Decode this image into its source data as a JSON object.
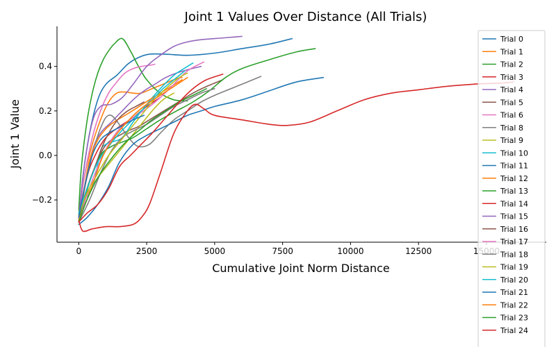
{
  "chart_data": {
    "type": "line",
    "title": "Joint 1 Values Over Distance (All Trials)",
    "xlabel": "Cumulative Joint Norm Distance",
    "ylabel": "Joint 1 Value",
    "xlim": [
      -800,
      17200
    ],
    "ylim": [
      -0.39,
      0.58
    ],
    "xticks": [
      0,
      2500,
      5000,
      7500,
      10000,
      12500,
      15000
    ],
    "yticks": [
      -0.2,
      0.0,
      0.2,
      0.4
    ],
    "ytick_labels": [
      "−0.2",
      "0.0",
      "0.2",
      "0.4"
    ],
    "grid": false,
    "legend_position": "right",
    "series": [
      {
        "name": "Trial 0",
        "color": "#1f77b4",
        "x": [
          0,
          150,
          400,
          700,
          1000,
          1400,
          1800,
          2200,
          2600,
          3200,
          4000,
          5000,
          6000,
          7000,
          7850
        ],
        "y": [
          -0.3,
          -0.1,
          0.1,
          0.25,
          0.32,
          0.36,
          0.41,
          0.44,
          0.455,
          0.455,
          0.45,
          0.46,
          0.48,
          0.5,
          0.525
        ]
      },
      {
        "name": "Trial 1",
        "color": "#ff7f0e",
        "x": [
          0,
          200,
          500,
          800,
          1100,
          1400,
          1700,
          2000,
          2300,
          2700,
          3100,
          3600,
          3800
        ],
        "y": [
          -0.28,
          -0.1,
          0.05,
          0.16,
          0.24,
          0.28,
          0.285,
          0.28,
          0.28,
          0.3,
          0.32,
          0.345,
          0.35
        ]
      },
      {
        "name": "Trial 2",
        "color": "#2ca02c",
        "x": [
          0,
          100,
          300,
          500,
          700,
          900,
          1100,
          1300,
          1600,
          1900,
          2200,
          2500,
          3000,
          3500,
          4000
        ],
        "y": [
          -0.25,
          -0.05,
          0.15,
          0.28,
          0.37,
          0.43,
          0.47,
          0.5,
          0.525,
          0.47,
          0.4,
          0.34,
          0.28,
          0.25,
          0.245
        ]
      },
      {
        "name": "Trial 3",
        "color": "#d62728",
        "x": [
          0,
          300,
          600,
          1000,
          1500,
          2000,
          2500,
          3000
        ],
        "y": [
          -0.3,
          -0.1,
          0.0,
          0.08,
          0.13,
          0.17,
          0.22,
          0.26
        ]
      },
      {
        "name": "Trial 4",
        "color": "#9467bd",
        "x": [
          0,
          200,
          500,
          800,
          1200,
          1600,
          2000,
          2400,
          2800,
          3200,
          3600,
          4000,
          4500
        ],
        "y": [
          -0.29,
          -0.15,
          0.02,
          0.1,
          0.15,
          0.2,
          0.25,
          0.29,
          0.32,
          0.35,
          0.37,
          0.385,
          0.4
        ]
      },
      {
        "name": "Trial 5",
        "color": "#8c564b",
        "x": [
          0,
          300,
          600,
          900,
          1200,
          1500,
          1800,
          2200,
          2600,
          3000,
          3400,
          3800,
          4200,
          4700,
          5300
        ],
        "y": [
          -0.28,
          -0.15,
          -0.05,
          0.03,
          0.07,
          0.09,
          0.11,
          0.13,
          0.16,
          0.19,
          0.22,
          0.25,
          0.28,
          0.31,
          0.34
        ]
      },
      {
        "name": "Trial 6",
        "color": "#e377c2",
        "x": [
          0,
          200,
          500,
          800,
          1100,
          1400,
          1700,
          2000,
          2300,
          2600,
          2800
        ],
        "y": [
          -0.27,
          -0.1,
          0.08,
          0.2,
          0.28,
          0.33,
          0.37,
          0.39,
          0.4,
          0.405,
          0.41
        ]
      },
      {
        "name": "Trial 8",
        "color": "#7f7f7f",
        "x": [
          0,
          300,
          600,
          900,
          1100,
          1300,
          1600,
          1900,
          2200,
          2600,
          3000,
          3500,
          4000,
          4500,
          5000,
          5600,
          6200,
          6700
        ],
        "y": [
          -0.27,
          -0.1,
          0.05,
          0.15,
          0.18,
          0.17,
          0.12,
          0.07,
          0.04,
          0.05,
          0.1,
          0.16,
          0.2,
          0.24,
          0.27,
          0.3,
          0.33,
          0.355
        ]
      },
      {
        "name": "Trial 9",
        "color": "#bcbd22",
        "x": [
          0,
          300,
          700,
          1100,
          1500,
          1900,
          2300,
          2700,
          3100,
          3500
        ],
        "y": [
          -0.25,
          -0.18,
          -0.1,
          -0.04,
          0.02,
          0.08,
          0.14,
          0.2,
          0.25,
          0.28
        ]
      },
      {
        "name": "Trial 10",
        "color": "#17becf",
        "x": [
          0,
          200,
          400,
          600,
          800,
          1000,
          1200,
          1600,
          2000,
          2500,
          3000,
          3500,
          4000,
          4200
        ],
        "y": [
          -0.26,
          -0.2,
          -0.17,
          -0.1,
          0.02,
          0.05,
          0.06,
          0.08,
          0.15,
          0.23,
          0.3,
          0.36,
          0.4,
          0.415
        ]
      },
      {
        "name": "Trial 11",
        "color": "#1f77b4",
        "x": [
          0,
          300,
          700,
          1100,
          1500,
          2000,
          2500,
          3000,
          3500,
          4000,
          4500,
          5000,
          6000,
          7000,
          8000,
          9000
        ],
        "y": [
          -0.31,
          -0.28,
          -0.22,
          -0.14,
          -0.03,
          0.05,
          0.09,
          0.12,
          0.15,
          0.18,
          0.2,
          0.22,
          0.25,
          0.29,
          0.33,
          0.35
        ]
      },
      {
        "name": "Trial 12",
        "color": "#ff7f0e",
        "x": [
          0,
          200,
          400,
          700,
          1000,
          1300,
          1700,
          2100,
          2600,
          3000,
          3400,
          3800
        ],
        "y": [
          -0.28,
          -0.15,
          -0.02,
          0.07,
          0.12,
          0.15,
          0.18,
          0.21,
          0.25,
          0.28,
          0.31,
          0.34
        ]
      },
      {
        "name": "Trial 13",
        "color": "#2ca02c",
        "x": [
          0,
          400,
          800,
          1200,
          1600,
          2000,
          2500,
          3000,
          3600,
          4200,
          4800,
          5400,
          6000,
          7000,
          8000,
          8700
        ],
        "y": [
          -0.29,
          -0.12,
          0.0,
          0.04,
          0.06,
          0.08,
          0.12,
          0.16,
          0.2,
          0.24,
          0.29,
          0.35,
          0.39,
          0.43,
          0.465,
          0.48
        ]
      },
      {
        "name": "Trial 14",
        "color": "#d62728",
        "x": [
          0,
          150,
          500,
          1000,
          1500,
          2000,
          2300,
          2600,
          3000,
          3500,
          4000,
          4300,
          4600,
          5000,
          6000,
          7000,
          7700,
          8500,
          9500,
          10500,
          11500,
          12500,
          13500,
          14500,
          15500,
          16000
        ],
        "y": [
          -0.29,
          -0.34,
          -0.33,
          -0.32,
          -0.32,
          -0.31,
          -0.28,
          -0.22,
          -0.08,
          0.1,
          0.2,
          0.23,
          0.21,
          0.18,
          0.16,
          0.14,
          0.135,
          0.15,
          0.2,
          0.25,
          0.28,
          0.295,
          0.31,
          0.32,
          0.325,
          0.33
        ]
      },
      {
        "name": "Trial 15",
        "color": "#9467bd",
        "x": [
          0,
          200,
          500,
          800,
          1200,
          1600,
          2000,
          2500,
          3000,
          3500,
          4000,
          4500,
          5000,
          5500,
          6000
        ],
        "y": [
          -0.28,
          -0.05,
          0.15,
          0.22,
          0.23,
          0.26,
          0.32,
          0.4,
          0.45,
          0.49,
          0.51,
          0.52,
          0.525,
          0.53,
          0.535
        ]
      },
      {
        "name": "Trial 16",
        "color": "#8c564b",
        "x": [
          0,
          300,
          600,
          900,
          1200,
          1500,
          1800,
          2100,
          2400
        ],
        "y": [
          -0.27,
          -0.15,
          -0.05,
          0.05,
          0.12,
          0.17,
          0.2,
          0.22,
          0.24
        ]
      },
      {
        "name": "Trial 17",
        "color": "#e377c2",
        "x": [
          0,
          300,
          700,
          1100,
          1500,
          2000,
          2500,
          3000,
          3500,
          4000,
          4600
        ],
        "y": [
          -0.3,
          -0.18,
          -0.05,
          0.05,
          0.12,
          0.17,
          0.21,
          0.26,
          0.32,
          0.38,
          0.42
        ]
      },
      {
        "name": "Trial 18",
        "color": "#7f7f7f",
        "x": [
          0,
          400,
          800,
          1200,
          1600,
          2000,
          2500,
          3000,
          3500,
          4000,
          4500,
          5000
        ],
        "y": [
          -0.3,
          -0.2,
          -0.08,
          0.02,
          0.08,
          0.11,
          0.14,
          0.18,
          0.22,
          0.25,
          0.28,
          0.3
        ]
      },
      {
        "name": "Trial 19",
        "color": "#bcbd22",
        "x": [
          0,
          300,
          700,
          1100,
          1500,
          1900,
          2300,
          2700,
          3200,
          3700,
          4000
        ],
        "y": [
          -0.27,
          -0.17,
          -0.08,
          0.0,
          0.06,
          0.12,
          0.18,
          0.24,
          0.3,
          0.35,
          0.37
        ]
      },
      {
        "name": "Trial 20",
        "color": "#17becf",
        "x": [
          0,
          300,
          700,
          1100,
          1500,
          1900,
          2300,
          2700,
          3100,
          3500,
          3900
        ],
        "y": [
          -0.26,
          -0.15,
          -0.03,
          0.04,
          0.1,
          0.15,
          0.2,
          0.25,
          0.3,
          0.34,
          0.38
        ]
      },
      {
        "name": "Trial 21",
        "color": "#1f77b4",
        "x": [
          0,
          200,
          500,
          800,
          1100,
          1400,
          1700,
          2000,
          2400
        ],
        "y": [
          -0.28,
          -0.15,
          0.0,
          0.07,
          0.1,
          0.12,
          0.14,
          0.16,
          0.18
        ]
      },
      {
        "name": "Trial 22",
        "color": "#ff7f0e",
        "x": [
          0,
          300,
          600,
          900,
          1300,
          1700,
          2100,
          2500,
          3000,
          3500,
          4000
        ],
        "y": [
          -0.29,
          -0.2,
          -0.1,
          0.0,
          0.08,
          0.14,
          0.19,
          0.23,
          0.27,
          0.31,
          0.35
        ]
      },
      {
        "name": "Trial 23",
        "color": "#2ca02c",
        "x": [
          0,
          300,
          700,
          1100,
          1500,
          1900,
          2300,
          2700,
          3200,
          3700,
          4200,
          4700
        ],
        "y": [
          -0.3,
          -0.2,
          -0.1,
          -0.03,
          0.03,
          0.08,
          0.12,
          0.16,
          0.2,
          0.24,
          0.27,
          0.3
        ]
      },
      {
        "name": "Trial 24",
        "color": "#d62728",
        "x": [
          0,
          300,
          700,
          1100,
          1500,
          1900,
          2300,
          2700,
          3200,
          3700,
          4200,
          4700,
          5300
        ],
        "y": [
          -0.3,
          -0.26,
          -0.22,
          -0.15,
          -0.05,
          0.0,
          0.05,
          0.1,
          0.17,
          0.24,
          0.3,
          0.34,
          0.365
        ]
      }
    ]
  }
}
